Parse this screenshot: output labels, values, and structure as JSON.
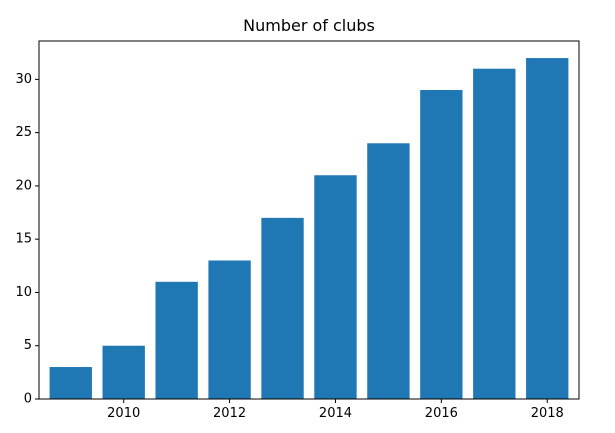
{
  "chart_data": {
    "type": "bar",
    "title": "Number of clubs",
    "xlabel": "",
    "ylabel": "",
    "x": [
      2009,
      2010,
      2011,
      2012,
      2013,
      2014,
      2015,
      2016,
      2017,
      2018
    ],
    "values": [
      3,
      5,
      11,
      13,
      17,
      21,
      24,
      29,
      31,
      32
    ],
    "x_ticks": [
      "2010",
      "2012",
      "2014",
      "2016",
      "2018"
    ],
    "y_ticks": [
      "0",
      "5",
      "10",
      "15",
      "20",
      "25",
      "30"
    ],
    "xlim": [
      2008.4,
      2018.6
    ],
    "ylim": [
      0,
      33.6
    ],
    "bar_color": "#1f77b4",
    "grid": false,
    "legend": "none"
  }
}
